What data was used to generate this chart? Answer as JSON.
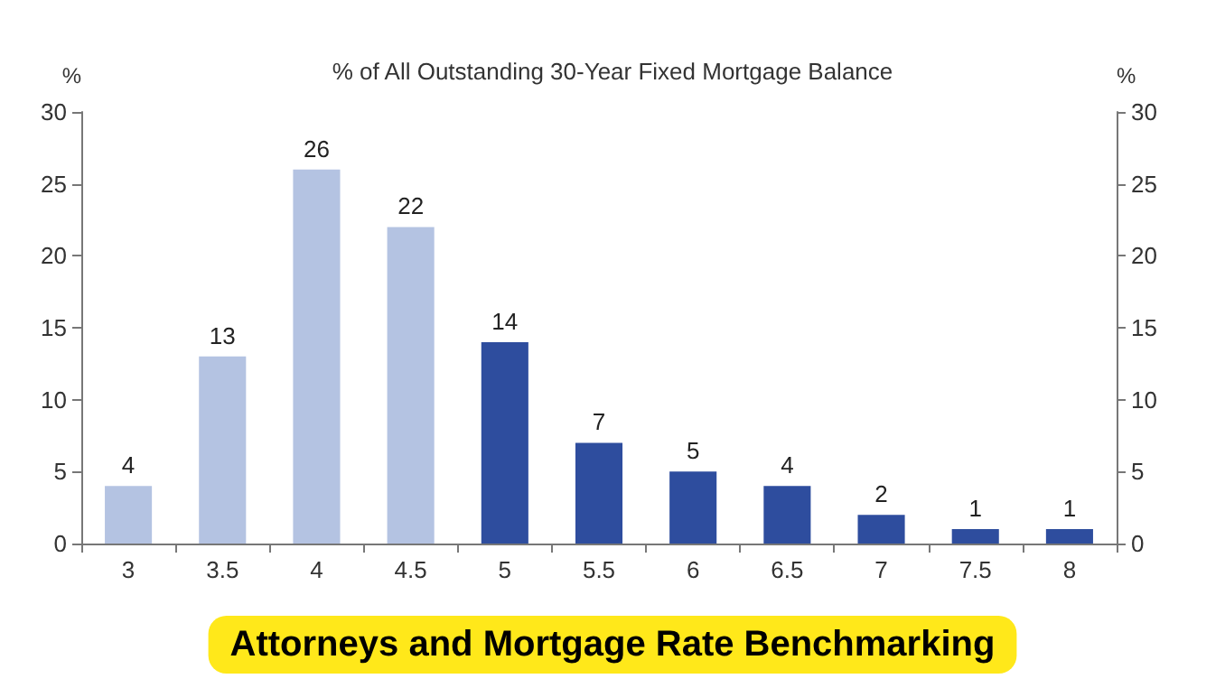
{
  "chart_data": {
    "type": "bar",
    "title": "% of All Outstanding 30-Year Fixed Mortgage Balance",
    "ylabel": "%",
    "y2label": "%",
    "categories": [
      "3",
      "3.5",
      "4",
      "4.5",
      "5",
      "5.5",
      "6",
      "6.5",
      "7",
      "7.5",
      "8"
    ],
    "values": [
      4,
      13,
      26,
      22,
      14,
      7,
      5,
      4,
      2,
      1,
      1
    ],
    "colors": [
      "#b4c3e2",
      "#b4c3e2",
      "#b4c3e2",
      "#b4c3e2",
      "#2e4d9e",
      "#2e4d9e",
      "#2e4d9e",
      "#2e4d9e",
      "#2e4d9e",
      "#2e4d9e",
      "#2e4d9e"
    ],
    "ylim": [
      0,
      30
    ],
    "yticks": [
      0,
      5,
      10,
      15,
      20,
      25,
      30
    ],
    "y2lim": [
      0,
      30
    ],
    "y2ticks": [
      0,
      5,
      10,
      15,
      20,
      25,
      30
    ],
    "data_labels": true,
    "annotations": [
      "Attorneys and Mortgage Rate Benchmarking"
    ]
  }
}
